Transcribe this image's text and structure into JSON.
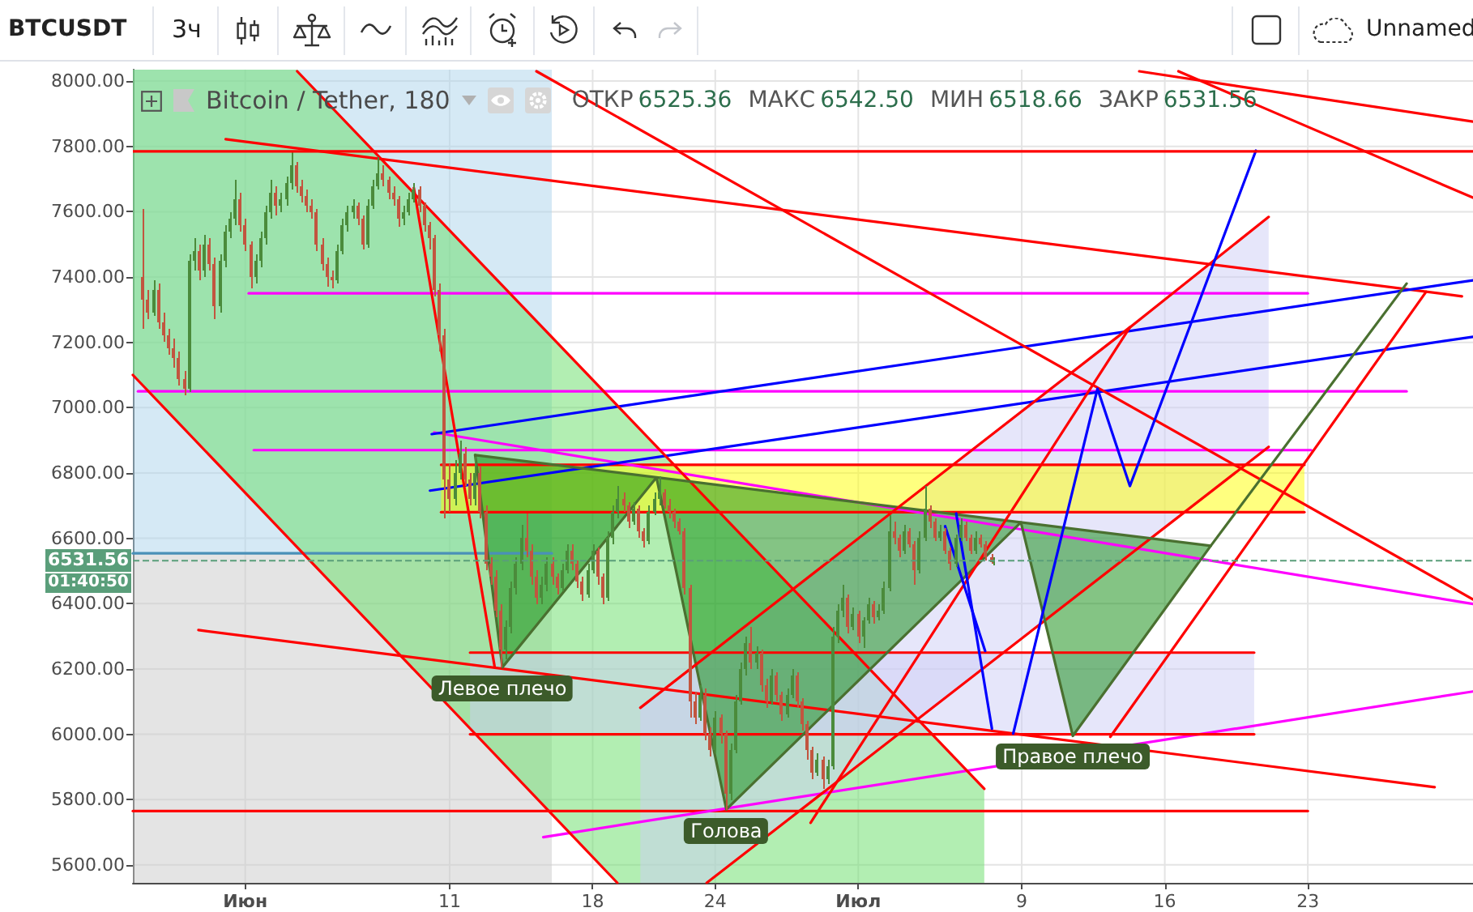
{
  "chart_data": {
    "type": "candlestick",
    "title": "BTCUSDT",
    "subtitle": "Bitcoin / Tether, 180",
    "annotations": [
      "ОТКР 6525.36 МАКС 6542.50 МИН 6518.66 ЗАКР 6531.56",
      "01:40:50",
      "3ч",
      "Unnamed",
      {
        "text": "Левое плечо",
        "x": "--06-13T14:00",
        "y": 6205
      },
      {
        "text": "Голова",
        "x": "--06-24T13:00",
        "y": 5770
      },
      {
        "text": "Правое плечо",
        "x": "--07-11T12:00",
        "y": 5995
      }
    ],
    "xlim": [
      "--05-26T12:00",
      "--07-31T02:00"
    ],
    "xticks": [
      {
        "value": "--06-01",
        "label": "Июн"
      },
      {
        "value": "--06-11",
        "label": "11"
      },
      {
        "value": "--06-18",
        "label": "18"
      },
      {
        "value": "--06-24",
        "label": "24"
      },
      {
        "value": "--07-01",
        "label": "Июл"
      },
      {
        "value": "--07-09",
        "label": "9"
      },
      {
        "value": "--07-16",
        "label": "16"
      },
      {
        "value": "--07-23",
        "label": "23"
      }
    ],
    "ylim": [
      5545,
      8035
    ],
    "yticks": [
      {
        "value": 5600,
        "label": "5600.00"
      },
      {
        "value": 5800,
        "label": "5800.00"
      },
      {
        "value": 6000,
        "label": "6000.00"
      },
      {
        "value": 6200,
        "label": "6200.00"
      },
      {
        "value": 6400,
        "label": "6400.00"
      },
      {
        "value": 6600,
        "label": "6600.00"
      },
      {
        "value": 6800,
        "label": "6800.00"
      },
      {
        "value": 7000,
        "label": "7000.00"
      },
      {
        "value": 7200,
        "label": "7200.00"
      },
      {
        "value": 7400,
        "label": "7400.00"
      },
      {
        "value": 7600,
        "label": "7600.00"
      },
      {
        "value": 7800,
        "label": "7800.00"
      },
      {
        "value": 8000,
        "label": "8000.00"
      }
    ],
    "grid": true,
    "ref_lines": [
      {
        "axis": "y",
        "value": 7785,
        "color": "#ff0000"
      },
      {
        "axis": "y",
        "value": 6531.56,
        "label": "6531.56",
        "color": "#5a9e7a",
        "line_style": "dashed"
      }
    ],
    "series": [
      {
        "type": "area",
        "color": "#abd3eb",
        "x": [
          "--05-26T12:00",
          "--06-16T00:00"
        ],
        "values": [
          null,
          null
        ],
        "lower": [
          6554,
          6554
        ],
        "upper": [
          8035,
          8035
        ]
      },
      {
        "type": "area",
        "color": "#c9c9c9",
        "x": [
          "--05-26T12:00",
          "--06-16T00:00"
        ],
        "values": [
          null,
          null
        ],
        "lower": [
          5545,
          5545
        ],
        "upper": [
          6554,
          6554
        ]
      },
      {
        "type": "area",
        "color": "#66dd66",
        "x": [
          "--05-26T12:00",
          "--06-03T13:00",
          "--06-19T05:00",
          "--07-07T04:00"
        ],
        "values": [
          null,
          null,
          null,
          null
        ],
        "lower": [
          7100,
          6572,
          5545,
          5545
        ],
        "upper": [
          8035,
          8035,
          7007,
          5833
        ]
      },
      {
        "type": "area",
        "color": "#cdcdf5",
        "x": [
          "--06-12T00:00",
          "--07-20T09:00"
        ],
        "values": [
          null,
          null
        ],
        "lower": [
          6000,
          6000
        ],
        "upper": [
          6250,
          6250
        ]
      },
      {
        "type": "area",
        "color": "#cdcdf5",
        "x": [
          "--06-20T08:00",
          "--06-23T14:00",
          "--07-21T02:00"
        ],
        "values": [
          null,
          null,
          null
        ],
        "lower": [
          5545,
          5545,
          6880
        ],
        "upper": [
          6081,
          6240,
          7584
        ]
      },
      {
        "type": "area",
        "color": "#ffff00",
        "x": [
          "--06-10T14:00",
          "--07-22T20:00"
        ],
        "values": [
          null,
          null
        ],
        "lower": [
          6680,
          6680
        ],
        "upper": [
          6825,
          6825
        ]
      },
      {
        "type": "area",
        "color": "#0a8a0a",
        "x": [
          "--06-12T06:00",
          "--06-13T14:00",
          "--06-21T03:00",
          "--06-24T13:00",
          "--07-08T23:00",
          "--07-11T12:00",
          "--07-18T06:00"
        ],
        "values": [
          null,
          null,
          null,
          null,
          null,
          null,
          null
        ],
        "lower": [
          6855,
          6205,
          6786,
          5770,
          6649,
          5995,
          6577
        ],
        "upper": [
          6855,
          6845,
          6786,
          6760,
          6649,
          6629,
          6577
        ]
      },
      {
        "type": "line",
        "color": "#4a90b8",
        "x": [
          "--05-26T12:00",
          "--06-16T00:00"
        ],
        "values": [
          6554,
          6554
        ]
      },
      {
        "type": "line",
        "color": "#ff0000",
        "x": [
          "--06-10T14:00",
          "--07-22T20:00"
        ],
        "values": [
          6680,
          6680
        ]
      },
      {
        "type": "line",
        "color": "#ff0000",
        "x": [
          "--06-10T14:00",
          "--07-22T20:00"
        ],
        "values": [
          6825,
          6825
        ]
      },
      {
        "type": "line",
        "color": "#ff0000",
        "x": [
          "--05-26T12:00",
          "--07-23T00:00"
        ],
        "values": [
          5765,
          5765
        ]
      },
      {
        "type": "line",
        "color": "#ff0000",
        "x": [
          "--05-31T01:00",
          "--07-30T13:00"
        ],
        "values": [
          7822,
          7341
        ]
      },
      {
        "type": "line",
        "color": "#ff0000",
        "x": [
          "--05-29T17:00",
          "--07-29T05:00"
        ],
        "values": [
          6319,
          5838
        ]
      },
      {
        "type": "line",
        "color": "#ff00ff",
        "x": [
          "--06-01T04:00",
          "--07-23T00:00"
        ],
        "values": [
          7350,
          7350
        ]
      },
      {
        "type": "line",
        "color": "#ff00ff",
        "x": [
          "--05-26T18:00",
          "--07-27T20:00"
        ],
        "values": [
          7050,
          7050
        ]
      },
      {
        "type": "line",
        "color": "#ff00ff",
        "x": [
          "--06-01T10:00",
          "--07-23T04:00"
        ],
        "values": [
          6870,
          6870
        ]
      },
      {
        "type": "line",
        "color": "#ff00ff",
        "x": [
          "--06-10T06:00",
          "--07-31T02:00"
        ],
        "values": [
          6924,
          6399
        ]
      },
      {
        "type": "line",
        "color": "#ff00ff",
        "x": [
          "--06-15T14:00",
          "--07-31T02:00"
        ],
        "values": [
          5685,
          6131
        ]
      },
      {
        "type": "line",
        "color": "#0000ff",
        "x": [
          "--06-10T03:00",
          "--07-31T02:00"
        ],
        "values": [
          6919,
          7390
        ]
      },
      {
        "type": "line",
        "color": "#0000ff",
        "x": [
          "--06-10T01:00",
          "--07-31T02:00"
        ],
        "values": [
          6746,
          7217
        ]
      },
      {
        "type": "line",
        "color": "#ff0000",
        "x": [
          "--06-12T00:00",
          "--07-20T09:00"
        ],
        "values": [
          6250,
          6250
        ]
      },
      {
        "type": "line",
        "color": "#ff0000",
        "x": [
          "--06-12T00:00",
          "--07-20T09:00"
        ],
        "values": [
          6000,
          6000
        ]
      },
      {
        "type": "line",
        "color": "#ff0000",
        "x": [
          "--06-03T13:00",
          "--07-07T04:00"
        ],
        "values": [
          8030,
          5833
        ]
      },
      {
        "type": "line",
        "color": "#ff0000",
        "x": [
          "--05-26T12:00",
          "--06-19T05:00"
        ],
        "values": [
          7100,
          5545
        ]
      },
      {
        "type": "line",
        "color": "#ff0000",
        "x": [
          "--06-15T06:00",
          "--07-31T02:00"
        ],
        "values": [
          8030,
          6413
        ]
      },
      {
        "type": "line",
        "color": "#ff0000",
        "x": [
          "--07-14T18:00",
          "--07-31T02:00"
        ],
        "values": [
          8030,
          7876
        ]
      },
      {
        "type": "line",
        "color": "#ff0000",
        "x": [
          "--07-16T16:00",
          "--07-31T02:00"
        ],
        "values": [
          8030,
          7643
        ]
      },
      {
        "type": "line",
        "color": "#ff0000",
        "x": [
          "--06-23T14:00",
          "--07-21T02:00"
        ],
        "values": [
          5545,
          6880
        ]
      },
      {
        "type": "line",
        "color": "#ff0000",
        "x": [
          "--07-14T07:00",
          "--07-21T02:00"
        ],
        "values": [
          7246,
          7584
        ]
      },
      {
        "type": "line",
        "color": "#4a7030",
        "x": [
          "--06-12T06:00",
          "--06-13T14:00",
          "--06-21T03:00",
          "--06-24T13:00",
          "--07-08T23:00",
          "--07-11T12:00",
          "--07-18T06:00"
        ],
        "values": [
          6855,
          6205,
          6786,
          5770,
          6649,
          5995,
          6577
        ]
      },
      {
        "type": "line",
        "color": "#4a7030",
        "x": [
          "--06-12T06:00",
          "--07-18T06:00"
        ],
        "values": [
          6855,
          6577
        ]
      },
      {
        "type": "line",
        "color": "#4a7030",
        "x": [
          "--07-18T06:00",
          "--07-27T20:00"
        ],
        "values": [
          6577,
          7380
        ]
      },
      {
        "type": "line",
        "color": "#ff0000",
        "x": [
          "--06-20T08:00",
          "--07-14T07:00"
        ],
        "values": [
          6081,
          7246
        ]
      },
      {
        "type": "line",
        "color": "#ff0000",
        "x": [
          "--06-28T16:00",
          "--07-14T07:00"
        ],
        "values": [
          5729,
          7246
        ]
      },
      {
        "type": "line",
        "color": "#ff0000",
        "x": [
          "--07-13T08:00",
          "--07-28T19:00"
        ],
        "values": [
          5992,
          7355
        ]
      },
      {
        "type": "line",
        "color": "#ff0000",
        "x": [
          "--06-09T06:00",
          "--06-13T05:00"
        ],
        "values": [
          7673,
          6205
        ]
      },
      {
        "type": "line",
        "color": "#0000ff",
        "x": [
          "--07-05T06:00",
          "--07-07T05:00"
        ],
        "values": [
          6637,
          6255
        ]
      },
      {
        "type": "line",
        "color": "#0000ff",
        "x": [
          "--07-05T19:00",
          "--07-07T13:00"
        ],
        "values": [
          6676,
          6017
        ]
      },
      {
        "type": "line",
        "color": "#0000ff",
        "x": [
          "--07-08T14:00",
          "--07-12T17:00",
          "--07-14T07:00",
          "--07-20T11:00"
        ],
        "values": [
          6002,
          7058,
          6760,
          7787
        ]
      },
      {
        "colors": [
          "#c2553f",
          "#c2553f",
          "#4b8b3b",
          "#c2553f",
          "#c2553f",
          "#c2553f",
          "#c2553f",
          "#c2553f",
          "#c2553f",
          "#4b8b3b",
          "#4b8b3b",
          "#c2553f",
          "#4b8b3b",
          "#c2553f",
          "#c2553f",
          "#4b8b3b",
          "#4b8b3b",
          "#4b8b3b",
          "#4b8b3b",
          "#c2553f",
          "#c2553f",
          "#c2553f",
          "#4b8b3b",
          "#4b8b3b",
          "#4b8b3b",
          "#4b8b3b",
          "#c2553f",
          "#4b8b3b",
          "#4b8b3b",
          "#4b8b3b",
          "#c2553f",
          "#c2553f",
          "#c2553f",
          "#c2553f",
          "#c2553f",
          "#c2553f",
          "#c2553f",
          "#c2553f",
          "#4b8b3b",
          "#4b8b3b",
          "#4b8b3b",
          "#4b8b3b",
          "#c2553f",
          "#c2553f",
          "#4b8b3b",
          "#4b8b3b",
          "#4b8b3b",
          "#c2553f",
          "#c2553f",
          "#c2553f",
          "#c2553f",
          "#4b8b3b",
          "#4b8b3b",
          "#4b8b3b",
          "#c2553f",
          "#c2553f",
          "#c2553f",
          "#c2553f",
          "#c2553f",
          "#c2553f",
          "#c2553f",
          "#4b8b3b",
          "#4b8b3b",
          "#c2553f",
          "#c2553f",
          "#4b8b3b",
          "#c2553f",
          "#c2553f",
          "#c2553f",
          "#c2553f",
          "#c2553f",
          "#4b8b3b",
          "#4b8b3b",
          "#4b8b3b",
          "#4b8b3b",
          "#c2553f",
          "#c2553f",
          "#c2553f",
          "#4b8b3b",
          "#4b8b3b",
          "#c2553f",
          "#c2553f",
          "#4b8b3b",
          "#4b8b3b",
          "#c2553f",
          "#c2553f",
          "#c2553f",
          "#4b8b3b",
          "#4b8b3b",
          "#c2553f",
          "#c2553f",
          "#4b8b3b",
          "#4b8b3b",
          "#4b8b3b",
          "#c2553f",
          "#c2553f",
          "#4b8b3b",
          "#c2553f",
          "#c2553f",
          "#4b8b3b",
          "#4b8b3b",
          "#4b8b3b",
          "#c2553f",
          "#c2553f",
          "#c2553f",
          "#c2553f",
          "#c2553f",
          "#c2553f",
          "#c2553f",
          "#4b8b3b",
          "#c2553f",
          "#c2553f",
          "#4b8b3b",
          "#c2553f",
          "#c2553f",
          "#4b8b3b",
          "#4b8b3b",
          "#4b8b3b",
          "#4b8b3b",
          "#c2553f",
          "#4b8b3b",
          "#c2553f",
          "#c2553f",
          "#4b8b3b",
          "#c2553f",
          "#c2553f",
          "#4b8b3b",
          "#4b8b3b",
          "#c2553f",
          "#c2553f",
          "#c2553f",
          "#c2553f",
          "#4b8b3b",
          "#c2553f",
          "#4b8b3b",
          "#4b8b3b",
          "#4b8b3b",
          "#4b8b3b",
          "#c2553f",
          "#4b8b3b",
          "#c2553f",
          "#4b8b3b",
          "#4b8b3b",
          "#c2553f",
          "#4b8b3b",
          "#4b8b3b",
          "#4b8b3b",
          "#c2553f",
          "#c2553f",
          "#4b8b3b",
          "#c2553f",
          "#c2553f",
          "#4b8b3b",
          "#4b8b3b",
          "#c2553f",
          "#c2553f",
          "#4b8b3b",
          "#c2553f",
          "#c2553f",
          "#4b8b3b",
          "#4b8b3b",
          "#c2553f",
          "#c2553f",
          "#4b8b3b",
          "#c2553f",
          "#c2553f",
          "#c2553f",
          "#4b8b3b"
        ],
        "x": [
          "--05-27T00:00",
          "--05-27T06:00",
          "--05-27T12:00",
          "--05-27T18:00",
          "--05-28T00:00",
          "--05-28T06:00",
          "--05-28T12:00",
          "--05-28T18:00",
          "--05-29T00:00",
          "--05-29T06:00",
          "--05-29T12:00",
          "--05-29T18:00",
          "--05-30T00:00",
          "--05-30T06:00",
          "--05-30T12:00",
          "--05-30T18:00",
          "--05-31T00:00",
          "--05-31T06:00",
          "--05-31T12:00",
          "--05-31T18:00",
          "--06-01T00:00",
          "--06-01T06:00",
          "--06-01T12:00",
          "--06-01T18:00",
          "--06-02T00:00",
          "--06-02T06:00",
          "--06-02T12:00",
          "--06-02T18:00",
          "--06-03T00:00",
          "--06-03T06:00",
          "--06-03T12:00",
          "--06-03T18:00",
          "--06-04T00:00",
          "--06-04T06:00",
          "--06-04T12:00",
          "--06-04T18:00",
          "--06-05T00:00",
          "--06-05T06:00",
          "--06-05T12:00",
          "--06-05T18:00",
          "--06-06T00:00",
          "--06-06T06:00",
          "--06-06T12:00",
          "--06-06T18:00",
          "--06-07T00:00",
          "--06-07T06:00",
          "--06-07T12:00",
          "--06-07T18:00",
          "--06-08T00:00",
          "--06-08T06:00",
          "--06-08T12:00",
          "--06-08T18:00",
          "--06-09T00:00",
          "--06-09T06:00",
          "--06-09T12:00",
          "--06-09T18:00",
          "--06-10T00:00",
          "--06-10T06:00",
          "--06-10T12:00",
          "--06-10T18:00",
          "--06-11T00:00",
          "--06-11T06:00",
          "--06-11T12:00",
          "--06-11T18:00",
          "--06-12T00:00",
          "--06-12T06:00",
          "--06-12T12:00",
          "--06-12T18:00",
          "--06-13T00:00",
          "--06-13T06:00",
          "--06-13T12:00",
          "--06-13T18:00",
          "--06-14T00:00",
          "--06-14T06:00",
          "--06-14T12:00",
          "--06-14T18:00",
          "--06-15T00:00",
          "--06-15T06:00",
          "--06-15T12:00",
          "--06-15T18:00",
          "--06-16T00:00",
          "--06-16T06:00",
          "--06-16T12:00",
          "--06-16T18:00",
          "--06-17T00:00",
          "--06-17T06:00",
          "--06-17T12:00",
          "--06-17T18:00",
          "--06-18T00:00",
          "--06-18T06:00",
          "--06-18T12:00",
          "--06-18T18:00",
          "--06-19T00:00",
          "--06-19T06:00",
          "--06-19T12:00",
          "--06-19T18:00",
          "--06-20T00:00",
          "--06-20T06:00",
          "--06-20T12:00",
          "--06-20T18:00",
          "--06-21T00:00",
          "--06-21T06:00",
          "--06-21T12:00",
          "--06-21T18:00",
          "--06-22T00:00",
          "--06-22T06:00",
          "--06-22T12:00",
          "--06-22T18:00",
          "--06-23T00:00",
          "--06-23T06:00",
          "--06-23T12:00",
          "--06-23T18:00",
          "--06-24T00:00",
          "--06-24T06:00",
          "--06-24T12:00",
          "--06-24T18:00",
          "--06-25T00:00",
          "--06-25T06:00",
          "--06-25T12:00",
          "--06-25T18:00",
          "--06-26T00:00",
          "--06-26T06:00",
          "--06-26T12:00",
          "--06-26T18:00",
          "--06-27T00:00",
          "--06-27T06:00",
          "--06-27T12:00",
          "--06-27T18:00",
          "--06-28T00:00",
          "--06-28T06:00",
          "--06-28T12:00",
          "--06-28T18:00",
          "--06-29T00:00",
          "--06-29T06:00",
          "--06-29T12:00",
          "--06-29T18:00",
          "--06-30T00:00",
          "--06-30T06:00",
          "--06-30T12:00",
          "--06-30T18:00",
          "--07-01T00:00",
          "--07-01T06:00",
          "--07-01T12:00",
          "--07-01T18:00",
          "--07-02T00:00",
          "--07-02T06:00",
          "--07-02T12:00",
          "--07-02T18:00",
          "--07-03T00:00",
          "--07-03T06:00",
          "--07-03T12:00",
          "--07-03T18:00",
          "--07-04T00:00",
          "--07-04T06:00",
          "--07-04T12:00",
          "--07-04T18:00",
          "--07-05T00:00",
          "--07-05T06:00",
          "--07-05T12:00",
          "--07-05T18:00",
          "--07-06T00:00",
          "--07-06T06:00",
          "--07-06T12:00",
          "--07-06T18:00",
          "--07-07T00:00",
          "--07-07T06:00",
          "--07-07T12:00",
          "--07-07T15:00"
        ],
        "ohlc": [
          [
            7400,
            7610,
            7240,
            7330
          ],
          [
            7330,
            7360,
            7270,
            7290
          ],
          [
            7290,
            7390,
            7280,
            7360
          ],
          [
            7360,
            7380,
            7240,
            7260
          ],
          [
            7260,
            7290,
            7200,
            7220
          ],
          [
            7220,
            7240,
            7160,
            7180
          ],
          [
            7180,
            7210,
            7120,
            7150
          ],
          [
            7150,
            7170,
            7070,
            7090
          ],
          [
            7090,
            7110,
            7040,
            7060
          ],
          [
            7060,
            7470,
            7050,
            7450
          ],
          [
            7450,
            7520,
            7420,
            7480
          ],
          [
            7480,
            7500,
            7390,
            7420
          ],
          [
            7420,
            7530,
            7400,
            7500
          ],
          [
            7500,
            7520,
            7420,
            7440
          ],
          [
            7440,
            7460,
            7270,
            7310
          ],
          [
            7310,
            7470,
            7290,
            7450
          ],
          [
            7450,
            7560,
            7430,
            7540
          ],
          [
            7540,
            7600,
            7520,
            7580
          ],
          [
            7580,
            7700,
            7560,
            7640
          ],
          [
            7640,
            7660,
            7540,
            7560
          ],
          [
            7560,
            7580,
            7480,
            7500
          ],
          [
            7500,
            7510,
            7365,
            7400
          ],
          [
            7400,
            7470,
            7380,
            7450
          ],
          [
            7450,
            7540,
            7430,
            7520
          ],
          [
            7520,
            7620,
            7500,
            7600
          ],
          [
            7600,
            7700,
            7580,
            7660
          ],
          [
            7660,
            7680,
            7590,
            7620
          ],
          [
            7620,
            7660,
            7600,
            7640
          ],
          [
            7640,
            7710,
            7620,
            7690
          ],
          [
            7690,
            7785,
            7670,
            7740
          ],
          [
            7740,
            7750,
            7660,
            7680
          ],
          [
            7680,
            7700,
            7630,
            7650
          ],
          [
            7650,
            7670,
            7600,
            7620
          ],
          [
            7620,
            7640,
            7580,
            7600
          ],
          [
            7600,
            7610,
            7480,
            7500
          ],
          [
            7500,
            7520,
            7420,
            7440
          ],
          [
            7440,
            7460,
            7370,
            7400
          ],
          [
            7400,
            7420,
            7365,
            7390
          ],
          [
            7390,
            7500,
            7380,
            7480
          ],
          [
            7480,
            7580,
            7470,
            7560
          ],
          [
            7560,
            7620,
            7540,
            7600
          ],
          [
            7600,
            7640,
            7580,
            7620
          ],
          [
            7620,
            7630,
            7560,
            7580
          ],
          [
            7580,
            7590,
            7485,
            7500
          ],
          [
            7500,
            7640,
            7490,
            7620
          ],
          [
            7620,
            7700,
            7610,
            7680
          ],
          [
            7680,
            7767,
            7670,
            7720
          ],
          [
            7720,
            7740,
            7680,
            7700
          ],
          [
            7700,
            7710,
            7640,
            7660
          ],
          [
            7660,
            7680,
            7620,
            7640
          ],
          [
            7640,
            7650,
            7554,
            7580
          ],
          [
            7580,
            7620,
            7560,
            7600
          ],
          [
            7600,
            7660,
            7590,
            7640
          ],
          [
            7640,
            7690,
            7630,
            7670
          ],
          [
            7670,
            7680,
            7600,
            7620
          ],
          [
            7620,
            7630,
            7540,
            7560
          ],
          [
            7560,
            7570,
            7485,
            7520
          ],
          [
            7520,
            7530,
            7340,
            7360
          ],
          [
            7360,
            7380,
            7172,
            7220
          ],
          [
            7220,
            7240,
            6660,
            6780
          ],
          [
            6780,
            6830,
            6680,
            6720
          ],
          [
            6720,
            6840,
            6700,
            6800
          ],
          [
            6800,
            6900,
            6780,
            6860
          ],
          [
            6860,
            6880,
            6760,
            6780
          ],
          [
            6780,
            6800,
            6700,
            6720
          ],
          [
            6720,
            6850,
            6700,
            6800
          ],
          [
            6800,
            6820,
            6660,
            6680
          ],
          [
            6680,
            6700,
            6500,
            6520
          ],
          [
            6520,
            6540,
            6460,
            6480
          ],
          [
            6480,
            6500,
            6360,
            6380
          ],
          [
            6380,
            6400,
            6205,
            6260
          ],
          [
            6260,
            6350,
            6230,
            6330
          ],
          [
            6330,
            6470,
            6310,
            6450
          ],
          [
            6450,
            6540,
            6430,
            6520
          ],
          [
            6520,
            6640,
            6500,
            6600
          ],
          [
            6600,
            6676,
            6540,
            6560
          ],
          [
            6560,
            6580,
            6460,
            6480
          ],
          [
            6480,
            6500,
            6400,
            6420
          ],
          [
            6420,
            6480,
            6400,
            6460
          ],
          [
            6460,
            6540,
            6440,
            6520
          ],
          [
            6520,
            6540,
            6460,
            6480
          ],
          [
            6480,
            6490,
            6430,
            6450
          ],
          [
            6450,
            6520,
            6440,
            6500
          ],
          [
            6500,
            6580,
            6490,
            6560
          ],
          [
            6560,
            6580,
            6500,
            6520
          ],
          [
            6520,
            6530,
            6450,
            6470
          ],
          [
            6470,
            6480,
            6410,
            6430
          ],
          [
            6430,
            6520,
            6420,
            6500
          ],
          [
            6500,
            6580,
            6490,
            6560
          ],
          [
            6560,
            6570,
            6460,
            6480
          ],
          [
            6480,
            6490,
            6400,
            6420
          ],
          [
            6420,
            6620,
            6410,
            6600
          ],
          [
            6600,
            6700,
            6580,
            6680
          ],
          [
            6680,
            6760,
            6660,
            6720
          ],
          [
            6720,
            6740,
            6680,
            6700
          ],
          [
            6700,
            6710,
            6630,
            6650
          ],
          [
            6650,
            6710,
            6640,
            6690
          ],
          [
            6690,
            6700,
            6600,
            6620
          ],
          [
            6620,
            6630,
            6570,
            6590
          ],
          [
            6590,
            6700,
            6580,
            6680
          ],
          [
            6680,
            6740,
            6670,
            6720
          ],
          [
            6720,
            6790,
            6700,
            6740
          ],
          [
            6740,
            6750,
            6690,
            6700
          ],
          [
            6700,
            6720,
            6660,
            6680
          ],
          [
            6680,
            6690,
            6630,
            6650
          ],
          [
            6650,
            6660,
            6610,
            6620
          ],
          [
            6620,
            6630,
            6430,
            6450
          ],
          [
            6450,
            6460,
            6050,
            6100
          ],
          [
            6100,
            6130,
            6030,
            6050
          ],
          [
            6050,
            6150,
            6040,
            6120
          ],
          [
            6120,
            6140,
            5980,
            6000
          ],
          [
            6000,
            6020,
            5930,
            5950
          ],
          [
            5950,
            6070,
            5940,
            6050
          ],
          [
            6050,
            6060,
            5970,
            6000
          ],
          [
            6000,
            6010,
            5770,
            5820
          ],
          [
            5820,
            5970,
            5800,
            5950
          ],
          [
            5950,
            6120,
            5940,
            6100
          ],
          [
            6100,
            6220,
            6090,
            6200
          ],
          [
            6200,
            6300,
            6180,
            6280
          ],
          [
            6280,
            6330,
            6200,
            6220
          ],
          [
            6220,
            6270,
            6200,
            6250
          ],
          [
            6250,
            6260,
            6130,
            6150
          ],
          [
            6150,
            6170,
            6080,
            6100
          ],
          [
            6100,
            6200,
            6090,
            6180
          ],
          [
            6180,
            6190,
            6100,
            6120
          ],
          [
            6120,
            6130,
            6040,
            6060
          ],
          [
            6060,
            6140,
            6050,
            6120
          ],
          [
            6120,
            6200,
            6110,
            6180
          ],
          [
            6180,
            6190,
            6080,
            6100
          ],
          [
            6100,
            6110,
            6010,
            6030
          ],
          [
            6030,
            6040,
            5920,
            5950
          ],
          [
            5950,
            5960,
            5860,
            5880
          ],
          [
            5880,
            5940,
            5870,
            5920
          ],
          [
            5920,
            5930,
            5833,
            5860
          ],
          [
            5860,
            5920,
            5850,
            5900
          ],
          [
            5900,
            6330,
            5890,
            6300
          ],
          [
            6300,
            6400,
            6280,
            6380
          ],
          [
            6380,
            6460,
            6360,
            6420
          ],
          [
            6420,
            6430,
            6310,
            6330
          ],
          [
            6330,
            6390,
            6320,
            6370
          ],
          [
            6370,
            6380,
            6280,
            6300
          ],
          [
            6300,
            6360,
            6263,
            6350
          ],
          [
            6350,
            6420,
            6340,
            6400
          ],
          [
            6400,
            6410,
            6340,
            6360
          ],
          [
            6360,
            6400,
            6350,
            6380
          ],
          [
            6380,
            6470,
            6370,
            6450
          ],
          [
            6450,
            6670,
            6440,
            6620
          ],
          [
            6620,
            6650,
            6580,
            6600
          ],
          [
            6600,
            6610,
            6540,
            6560
          ],
          [
            6560,
            6640,
            6550,
            6620
          ],
          [
            6620,
            6630,
            6570,
            6580
          ],
          [
            6580,
            6590,
            6460,
            6500
          ],
          [
            6500,
            6620,
            6490,
            6600
          ],
          [
            6600,
            6760,
            6590,
            6690
          ],
          [
            6690,
            6700,
            6630,
            6650
          ],
          [
            6650,
            6660,
            6590,
            6600
          ],
          [
            6600,
            6640,
            6590,
            6620
          ],
          [
            6620,
            6630,
            6550,
            6560
          ],
          [
            6560,
            6570,
            6500,
            6520
          ],
          [
            6520,
            6610,
            6510,
            6600
          ],
          [
            6600,
            6660,
            6590,
            6640
          ],
          [
            6640,
            6650,
            6590,
            6600
          ],
          [
            6600,
            6610,
            6550,
            6560
          ],
          [
            6560,
            6620,
            6550,
            6600
          ],
          [
            6600,
            6610,
            6570,
            6580
          ],
          [
            6580,
            6590,
            6530,
            6540
          ],
          [
            6540,
            6550,
            6520,
            6525.36
          ],
          [
            6525.36,
            6542.5,
            6518.66,
            6531.56
          ]
        ]
      }
    ]
  }
}
